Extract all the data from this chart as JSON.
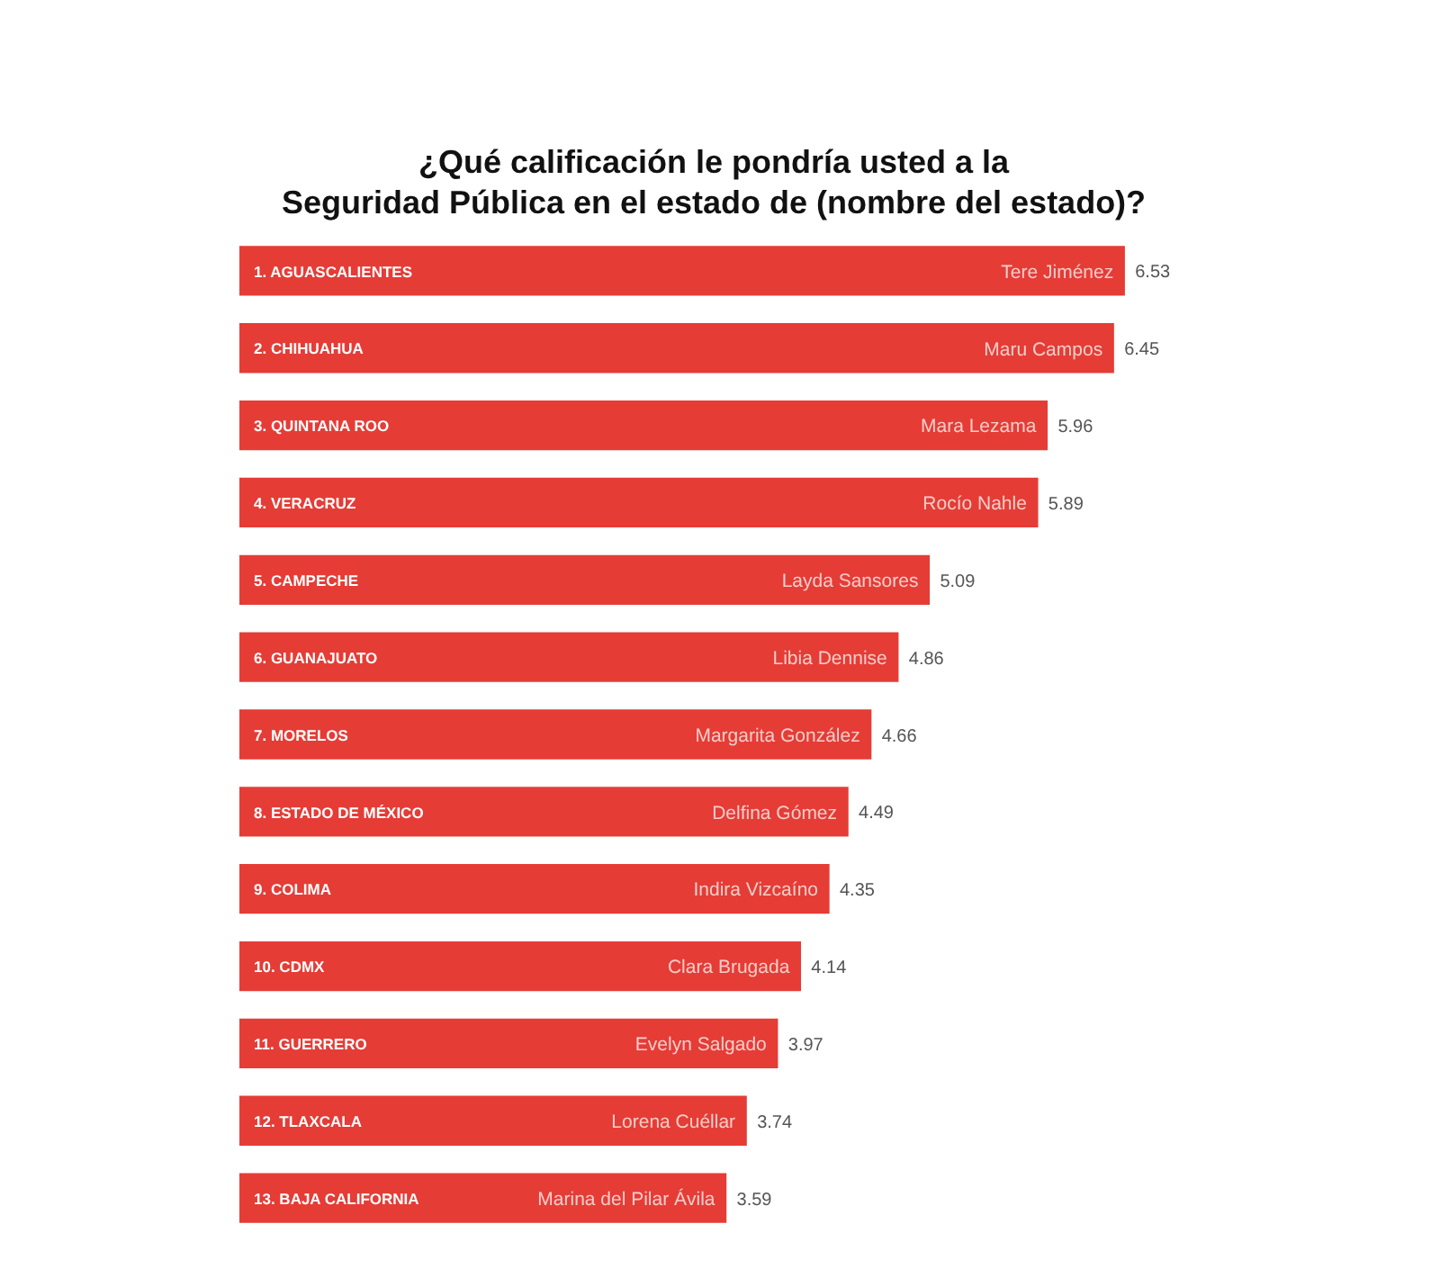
{
  "chart_data": {
    "type": "bar",
    "orientation": "horizontal",
    "title": "¿Qué calificación le pondría usted a la Seguridad Pública en el estado de (nombre del estado)?",
    "categories": [
      "1. AGUASCALIENTES",
      "2. CHIHUAHUA",
      "3. QUINTANA ROO",
      "4. VERACRUZ",
      "5. CAMPECHE",
      "6. GUANAJUATO",
      "7. MORELOS",
      "8. ESTADO DE MÉXICO",
      "9. COLIMA",
      "10. CDMX",
      "11. GUERRERO",
      "12. TLAXCALA",
      "13. BAJA CALIFORNIA"
    ],
    "values": [
      6.53,
      6.45,
      5.96,
      5.89,
      5.09,
      4.86,
      4.66,
      4.49,
      4.35,
      4.14,
      3.97,
      3.74,
      3.59
    ],
    "color": "#e53c36",
    "data_labels": true,
    "annotations": [
      {
        "text": "Tere Jiménez",
        "x": 6.53,
        "y": "1. AGUASCALIENTES"
      },
      {
        "text": "Maru Campos",
        "x": 6.45,
        "y": "2. CHIHUAHUA"
      },
      {
        "text": "Mara Lezama",
        "x": 5.96,
        "y": "3. QUINTANA ROO"
      },
      {
        "text": "Rocío Nahle",
        "x": 5.89,
        "y": "4. VERACRUZ"
      },
      {
        "text": "Layda Sansores",
        "x": 5.09,
        "y": "5. CAMPECHE"
      },
      {
        "text": "Libia Dennise",
        "x": 4.86,
        "y": "6. GUANAJUATO"
      },
      {
        "text": "Margarita González",
        "x": 4.66,
        "y": "7. MORELOS"
      },
      {
        "text": "Delfina Gómez",
        "x": 4.49,
        "y": "8. ESTADO DE MÉXICO"
      },
      {
        "text": "Indira Vizcaíno",
        "x": 4.35,
        "y": "9. COLIMA"
      },
      {
        "text": "Clara Brugada",
        "x": 4.14,
        "y": "10. CDMX"
      },
      {
        "text": "Evelyn Salgado",
        "x": 3.97,
        "y": "11. GUERRERO"
      },
      {
        "text": "Lorena Cuéllar",
        "x": 3.74,
        "y": "12. TLAXCALA"
      },
      {
        "text": "Marina del Pilar Ávila",
        "x": 3.59,
        "y": "13. BAJA CALIFORNIA"
      }
    ]
  }
}
